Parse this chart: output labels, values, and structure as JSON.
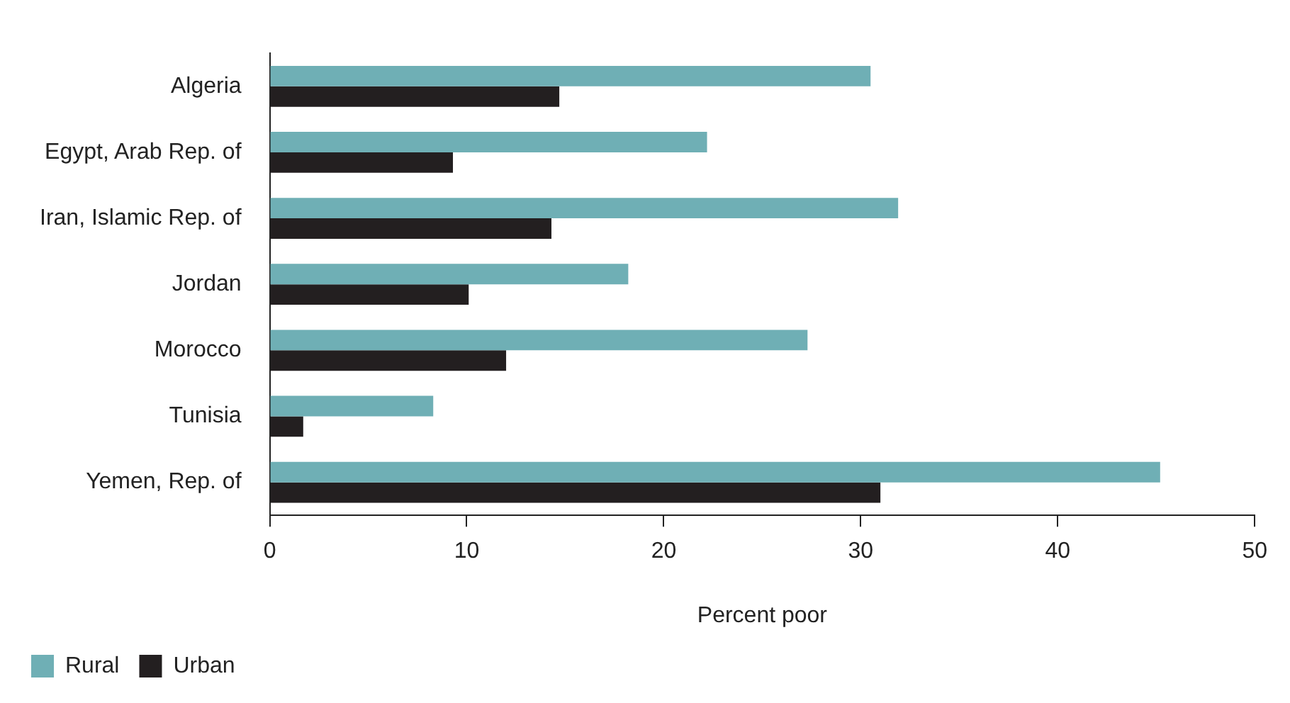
{
  "chart_data": {
    "type": "bar",
    "orientation": "horizontal",
    "xlabel": "Percent poor",
    "categories": [
      "Algeria",
      "Egypt, Arab Rep. of",
      "Iran, Islamic Rep. of",
      "Jordan",
      "Morocco",
      "Tunisia",
      "Yemen, Rep. of"
    ],
    "series": [
      {
        "name": "Rural",
        "color": "#6fafb5",
        "values": [
          30.5,
          22.2,
          31.9,
          18.2,
          27.3,
          8.3,
          45.2
        ]
      },
      {
        "name": "Urban",
        "color": "#231f20",
        "values": [
          14.7,
          9.3,
          14.3,
          10.1,
          12.0,
          1.7,
          31.0
        ]
      }
    ],
    "xlim": [
      0,
      50
    ],
    "xticks": [
      0,
      10,
      20,
      30,
      40,
      50
    ],
    "grid": false,
    "legend": "bottom left"
  }
}
